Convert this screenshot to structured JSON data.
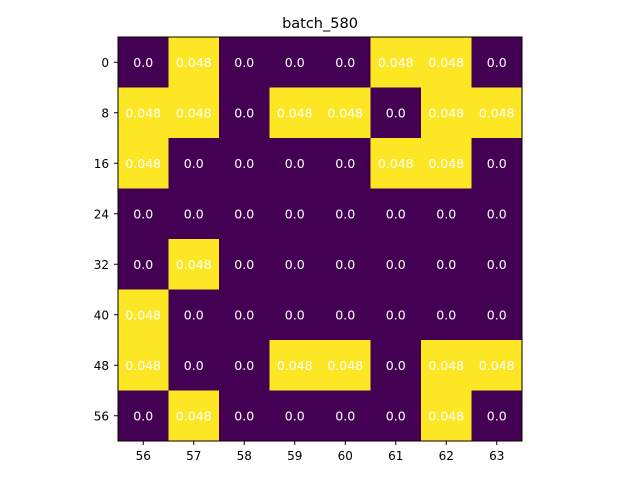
{
  "chart_data": {
    "type": "heatmap",
    "title": "batch_580",
    "xlabel": "",
    "ylabel": "",
    "x_ticks": [
      "56",
      "57",
      "58",
      "59",
      "60",
      "61",
      "62",
      "63"
    ],
    "y_ticks": [
      "0",
      "8",
      "16",
      "24",
      "32",
      "40",
      "48",
      "56"
    ],
    "values": [
      [
        0.0,
        0.048,
        0.0,
        0.0,
        0.0,
        0.048,
        0.048,
        0.0
      ],
      [
        0.048,
        0.048,
        0.0,
        0.048,
        0.048,
        0.0,
        0.048,
        0.048
      ],
      [
        0.048,
        0.0,
        0.0,
        0.0,
        0.0,
        0.048,
        0.048,
        0.0
      ],
      [
        0.0,
        0.0,
        0.0,
        0.0,
        0.0,
        0.0,
        0.0,
        0.0
      ],
      [
        0.0,
        0.048,
        0.0,
        0.0,
        0.0,
        0.0,
        0.0,
        0.0
      ],
      [
        0.048,
        0.0,
        0.0,
        0.0,
        0.0,
        0.0,
        0.0,
        0.0
      ],
      [
        0.048,
        0.0,
        0.0,
        0.048,
        0.048,
        0.0,
        0.048,
        0.048
      ],
      [
        0.0,
        0.048,
        0.0,
        0.0,
        0.0,
        0.0,
        0.048,
        0.0
      ]
    ],
    "value_labels": [
      [
        "0.0",
        "0.048",
        "0.0",
        "0.0",
        "0.0",
        "0.048",
        "0.048",
        "0.0"
      ],
      [
        "0.048",
        "0.048",
        "0.0",
        "0.048",
        "0.048",
        "0.0",
        "0.048",
        "0.048"
      ],
      [
        "0.048",
        "0.0",
        "0.0",
        "0.0",
        "0.0",
        "0.048",
        "0.048",
        "0.0"
      ],
      [
        "0.0",
        "0.0",
        "0.0",
        "0.0",
        "0.0",
        "0.0",
        "0.0",
        "0.0"
      ],
      [
        "0.0",
        "0.048",
        "0.0",
        "0.0",
        "0.0",
        "0.0",
        "0.0",
        "0.0"
      ],
      [
        "0.048",
        "0.0",
        "0.0",
        "0.0",
        "0.0",
        "0.0",
        "0.0",
        "0.0"
      ],
      [
        "0.048",
        "0.0",
        "0.0",
        "0.048",
        "0.048",
        "0.0",
        "0.048",
        "0.048"
      ],
      [
        "0.0",
        "0.048",
        "0.0",
        "0.0",
        "0.0",
        "0.0",
        "0.048",
        "0.0"
      ]
    ],
    "value_range": [
      0.0,
      0.048
    ],
    "colormap": "viridis",
    "colors": {
      "low": "#440154",
      "high": "#fde725",
      "annotation": "#ffffff"
    },
    "grid": false,
    "legend": "none"
  }
}
